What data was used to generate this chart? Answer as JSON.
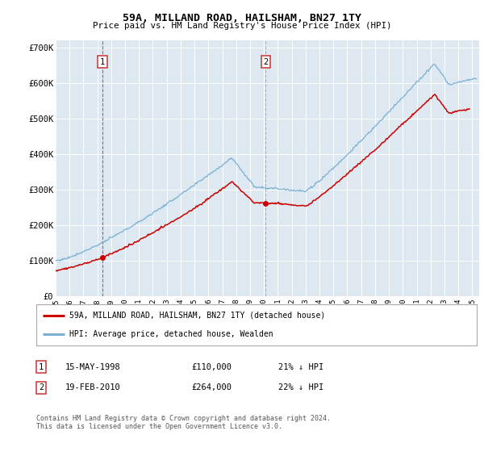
{
  "title": "59A, MILLAND ROAD, HAILSHAM, BN27 1TY",
  "subtitle": "Price paid vs. HM Land Registry's House Price Index (HPI)",
  "ylim": [
    0,
    720000
  ],
  "xlim_start": 1995.0,
  "xlim_end": 2025.5,
  "background_color": "#ffffff",
  "plot_bg_color": "#dde8f0",
  "grid_color": "#ffffff",
  "red_line_color": "#cc0000",
  "blue_line_color": "#7ab0d4",
  "marker1_date": 1998.37,
  "marker2_date": 2010.13,
  "legend_red_label": "59A, MILLAND ROAD, HAILSHAM, BN27 1TY (detached house)",
  "legend_blue_label": "HPI: Average price, detached house, Wealden",
  "table_row1": [
    "1",
    "15-MAY-1998",
    "£110,000",
    "21% ↓ HPI"
  ],
  "table_row2": [
    "2",
    "19-FEB-2010",
    "£264,000",
    "22% ↓ HPI"
  ],
  "footer": "Contains HM Land Registry data © Crown copyright and database right 2024.\nThis data is licensed under the Open Government Licence v3.0."
}
